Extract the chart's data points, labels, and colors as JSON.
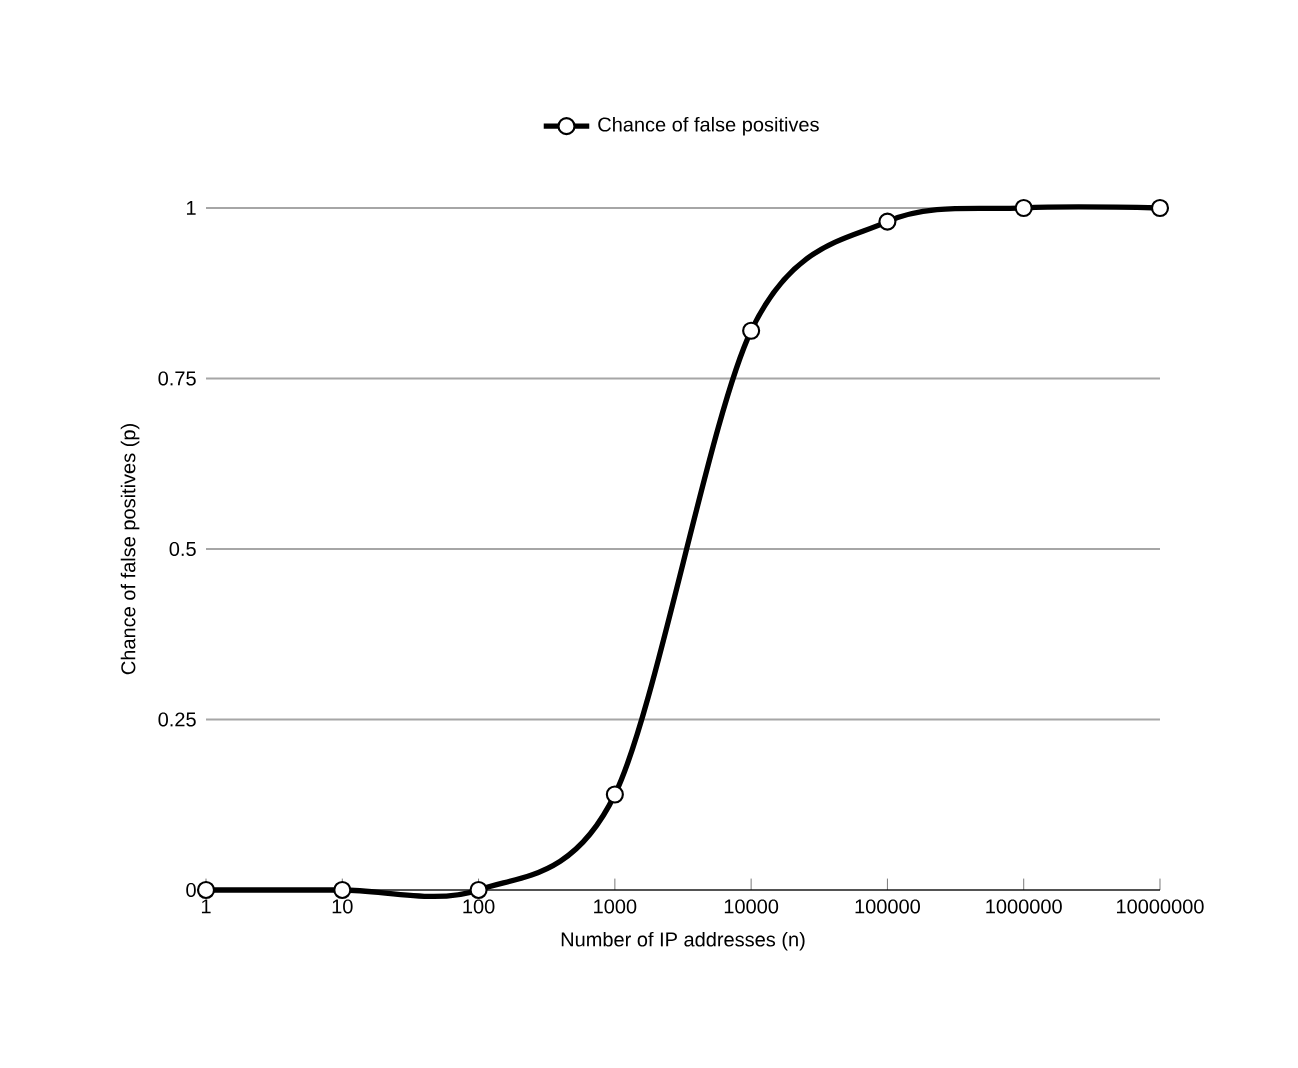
{
  "chart_data": {
    "type": "line",
    "xlabel": "Number of IP addresses (n)",
    "ylabel": "Chance of false positives (p)",
    "categories": [
      "1",
      "10",
      "100",
      "1000",
      "10000",
      "100000",
      "1000000",
      "10000000"
    ],
    "series": [
      {
        "name": "Chance of false positives",
        "color": "#000000",
        "values": [
          0,
          0,
          0,
          0.14,
          0.82,
          0.98,
          1,
          1
        ]
      }
    ],
    "ylim": [
      0,
      1
    ],
    "yticks": [
      0,
      {
        "value": 0.25,
        "label": "0.25"
      },
      {
        "value": 0.5,
        "label": "0.5"
      },
      {
        "value": 0.75,
        "label": "0.75"
      },
      1
    ],
    "grid": "y",
    "legend": "top",
    "marker": "circle",
    "line_style": "solid"
  }
}
